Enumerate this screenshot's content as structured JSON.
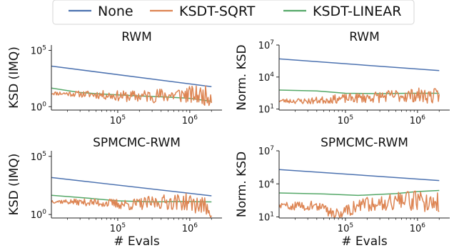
{
  "legend": {
    "placement": "top-center",
    "entries": [
      {
        "name": "None",
        "color": "#4c72b0"
      },
      {
        "name": "KSDT-SQRT",
        "color": "#dd8452"
      },
      {
        "name": "KSDT-LINEAR",
        "color": "#55a868"
      }
    ]
  },
  "chart_data": [
    {
      "type": "line",
      "title": "RWM",
      "xlabel": "",
      "ylabel": "KSD (IMQ)",
      "xscale": "log",
      "yscale": "log",
      "xlim": [
        12000,
        2800000
      ],
      "ylim": [
        0.5,
        300000
      ],
      "xticks": [
        {
          "v": 100000,
          "m": "10",
          "e": "5"
        },
        {
          "v": 1000000,
          "m": "10",
          "e": "6"
        }
      ],
      "yticks": [
        {
          "v": 1,
          "m": "10",
          "e": "0"
        },
        {
          "v": 100000,
          "m": "10",
          "e": "5"
        }
      ],
      "series": [
        {
          "name": "None",
          "points": [
            [
              12000,
              4000
            ],
            [
              2000000,
              60
            ]
          ]
        },
        {
          "name": "KSDT-LINEAR",
          "points": [
            [
              12000,
              45
            ],
            [
              30000,
              18
            ],
            [
              80000,
              12
            ],
            [
              200000,
              9
            ],
            [
              500000,
              7
            ],
            [
              1000000,
              5.5
            ],
            [
              2000000,
              3
            ]
          ]
        },
        {
          "name": "KSDT-SQRT",
          "base": [
            [
              12000,
              16
            ],
            [
              50000,
              12
            ],
            [
              150000,
              8
            ],
            [
              400000,
              10
            ],
            [
              800000,
              12
            ],
            [
              2000000,
              9
            ]
          ],
          "noise": [
            0.15,
            0.9
          ],
          "seed": 11
        }
      ]
    },
    {
      "type": "line",
      "title": "RWM",
      "xlabel": "",
      "ylabel": "Norm. KSD",
      "xscale": "log",
      "yscale": "log",
      "xlim": [
        12000,
        2800000
      ],
      "ylim": [
        8,
        10000000
      ],
      "xticks": [
        {
          "v": 100000,
          "m": "10",
          "e": "5"
        },
        {
          "v": 1000000,
          "m": "10",
          "e": "6"
        }
      ],
      "yticks": [
        {
          "v": 10,
          "m": "10",
          "e": "1"
        },
        {
          "v": 10000,
          "m": "10",
          "e": "4"
        },
        {
          "v": 10000000,
          "m": "10",
          "e": "7"
        }
      ],
      "series": [
        {
          "name": "None",
          "points": [
            [
              12000,
              500000
            ],
            [
              2000000,
              40000
            ]
          ]
        },
        {
          "name": "KSDT-LINEAR",
          "points": [
            [
              12000,
              600
            ],
            [
              40000,
              500
            ],
            [
              100000,
              300
            ],
            [
              300000,
              280
            ],
            [
              800000,
              300
            ],
            [
              2000000,
              300
            ]
          ]
        },
        {
          "name": "KSDT-SQRT",
          "base": [
            [
              12000,
              60
            ],
            [
              30000,
              55
            ],
            [
              80000,
              90
            ],
            [
              200000,
              120
            ],
            [
              500000,
              180
            ],
            [
              1000000,
              200
            ],
            [
              2000000,
              150
            ]
          ],
          "noise": [
            0.2,
            0.75
          ],
          "seed": 23
        }
      ]
    },
    {
      "type": "line",
      "title": "SPMCMC-RWM",
      "xlabel": "# Evals",
      "ylabel": "KSD (IMQ)",
      "xscale": "log",
      "yscale": "log",
      "xlim": [
        12000,
        2800000
      ],
      "ylim": [
        0.5,
        300000
      ],
      "xticks": [
        {
          "v": 100000,
          "m": "10",
          "e": "5"
        },
        {
          "v": 1000000,
          "m": "10",
          "e": "6"
        }
      ],
      "yticks": [
        {
          "v": 1,
          "m": "10",
          "e": "0"
        },
        {
          "v": 100000,
          "m": "10",
          "e": "5"
        }
      ],
      "series": [
        {
          "name": "None",
          "points": [
            [
              12000,
              1500
            ],
            [
              2000000,
              40
            ]
          ]
        },
        {
          "name": "KSDT-LINEAR",
          "points": [
            [
              12000,
              45
            ],
            [
              40000,
              25
            ],
            [
              100000,
              15
            ],
            [
              300000,
              12
            ],
            [
              800000,
              13
            ],
            [
              2000000,
              12
            ]
          ]
        },
        {
          "name": "KSDT-SQRT",
          "base": [
            [
              12000,
              14
            ],
            [
              60000,
              10
            ],
            [
              150000,
              7
            ],
            [
              400000,
              12
            ],
            [
              900000,
              12
            ],
            [
              1800000,
              4
            ],
            [
              2000000,
              2.5
            ]
          ],
          "noise": [
            0.15,
            0.85
          ],
          "seed": 37
        }
      ]
    },
    {
      "type": "line",
      "title": "SPMCMC-RWM",
      "xlabel": "# Evals",
      "ylabel": "Norm. KSD",
      "xscale": "log",
      "yscale": "log",
      "xlim": [
        12000,
        2800000
      ],
      "ylim": [
        8,
        10000000
      ],
      "xticks": [
        {
          "v": 100000,
          "m": "10",
          "e": "5"
        },
        {
          "v": 1000000,
          "m": "10",
          "e": "6"
        }
      ],
      "yticks": [
        {
          "v": 10,
          "m": "10",
          "e": "1"
        },
        {
          "v": 10000,
          "m": "10",
          "e": "4"
        },
        {
          "v": 10000000,
          "m": "10",
          "e": "7"
        }
      ],
      "series": [
        {
          "name": "None",
          "points": [
            [
              12000,
              200000
            ],
            [
              2000000,
              20000
            ]
          ]
        },
        {
          "name": "KSDT-LINEAR",
          "points": [
            [
              12000,
              1500
            ],
            [
              50000,
              1200
            ],
            [
              150000,
              900
            ],
            [
              500000,
              1300
            ],
            [
              1000000,
              2000
            ],
            [
              2000000,
              2500
            ]
          ]
        },
        {
          "name": "KSDT-SQRT",
          "base": [
            [
              12000,
              100
            ],
            [
              40000,
              100
            ],
            [
              60000,
              30
            ],
            [
              80000,
              20
            ],
            [
              100000,
              40
            ],
            [
              200000,
              150
            ],
            [
              500000,
              300
            ],
            [
              1000000,
              300
            ],
            [
              2000000,
              200
            ]
          ],
          "noise": [
            0.3,
            1.0
          ],
          "seed": 59
        }
      ]
    }
  ]
}
